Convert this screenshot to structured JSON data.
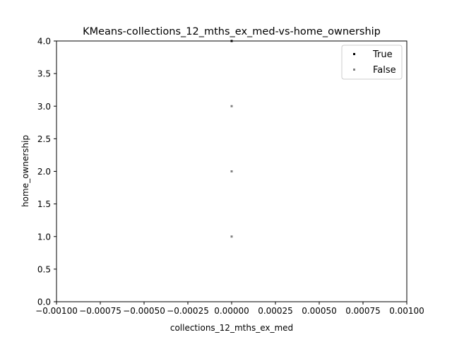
{
  "chart_data": {
    "type": "scatter",
    "title": "KMeans-collections_12_mths_ex_med-vs-home_ownership",
    "xlabel": "collections_12_mths_ex_med",
    "ylabel": "home_ownership",
    "xlim": [
      -0.001,
      0.001
    ],
    "ylim": [
      0.0,
      4.0
    ],
    "x_ticks": [
      -0.001,
      -0.00075,
      -0.0005,
      -0.00025,
      0.0,
      0.00025,
      0.0005,
      0.00075,
      0.001
    ],
    "x_tick_labels": [
      "−0.00100",
      "−0.00075",
      "−0.00050",
      "−0.00025",
      "0.00000",
      "0.00025",
      "0.00050",
      "0.00075",
      "0.00100"
    ],
    "y_ticks": [
      0.0,
      0.5,
      1.0,
      1.5,
      2.0,
      2.5,
      3.0,
      3.5,
      4.0
    ],
    "y_tick_labels": [
      "0.0",
      "0.5",
      "1.0",
      "1.5",
      "2.0",
      "2.5",
      "3.0",
      "3.5",
      "4.0"
    ],
    "grid": false,
    "legend_position": "top-right",
    "series": [
      {
        "name": "True",
        "color": "#000000",
        "points": [
          {
            "x": 0.0,
            "y": 4.0
          }
        ]
      },
      {
        "name": "False",
        "color": "#808080",
        "points": [
          {
            "x": 0.0,
            "y": 1.0
          },
          {
            "x": 0.0,
            "y": 2.0
          },
          {
            "x": 0.0,
            "y": 3.0
          }
        ]
      }
    ]
  }
}
